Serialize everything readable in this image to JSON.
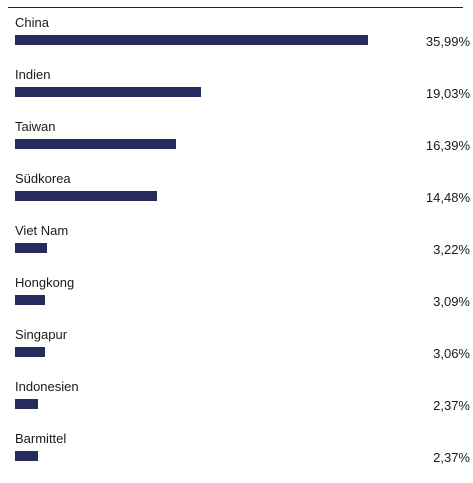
{
  "colors": {
    "bar": "#262a5c",
    "text": "#1a1a1a",
    "rule": "#222222"
  },
  "chart_data": {
    "type": "bar",
    "orientation": "horizontal",
    "title": "",
    "xlim": [
      0,
      40
    ],
    "categories": [
      "China",
      "Indien",
      "Taiwan",
      "Südkorea",
      "Viet Nam",
      "Hongkong",
      "Singapur",
      "Indonesien",
      "Barmittel"
    ],
    "values": [
      35.99,
      19.03,
      16.39,
      14.48,
      3.22,
      3.09,
      3.06,
      2.37,
      2.37
    ],
    "value_labels": [
      "35,99%",
      "19,03%",
      "16,39%",
      "14,48%",
      "3,22%",
      "3,09%",
      "3,06%",
      "2,37%",
      "2,37%"
    ],
    "grid": false,
    "legend": "none"
  }
}
